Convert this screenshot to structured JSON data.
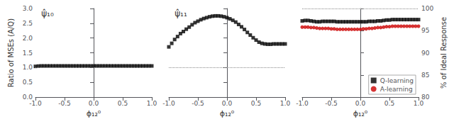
{
  "chart_data": [
    {
      "type": "scatter",
      "title": "ψ̂₁₀",
      "xlabel": "ϕ₁₂⁰",
      "ylabel": "Ratio of MSEs (A/Q)",
      "x": [
        -1.0,
        -0.95,
        -0.9,
        -0.85,
        -0.8,
        -0.75,
        -0.7,
        -0.65,
        -0.6,
        -0.55,
        -0.5,
        -0.45,
        -0.4,
        -0.35,
        -0.3,
        -0.25,
        -0.2,
        -0.15,
        -0.1,
        -0.05,
        0.0,
        0.05,
        0.1,
        0.15,
        0.2,
        0.25,
        0.3,
        0.35,
        0.4,
        0.45,
        0.5,
        0.55,
        0.6,
        0.65,
        0.7,
        0.75,
        0.8,
        0.85,
        0.9,
        0.95,
        1.0
      ],
      "values": [
        1.04,
        1.05,
        1.055,
        1.055,
        1.055,
        1.055,
        1.055,
        1.055,
        1.055,
        1.055,
        1.055,
        1.055,
        1.055,
        1.055,
        1.055,
        1.055,
        1.055,
        1.055,
        1.055,
        1.055,
        1.055,
        1.055,
        1.055,
        1.055,
        1.055,
        1.055,
        1.055,
        1.055,
        1.055,
        1.055,
        1.055,
        1.055,
        1.055,
        1.055,
        1.055,
        1.055,
        1.055,
        1.055,
        1.055,
        1.055,
        1.055
      ],
      "color": "#000000",
      "marker": "square",
      "xlim": [
        -1.0,
        1.0
      ],
      "xticks": [
        {
          "value": -1.0,
          "label": "-1.0"
        },
        -0.5,
        {
          "value": 0.0,
          "label": "0.0"
        },
        0.5,
        {
          "value": 1.0,
          "label": "1.0"
        }
      ],
      "ylim": [
        0.0,
        3.0
      ],
      "yticks": [
        {
          "value": 0.0,
          "label": "0.0"
        },
        0.5,
        {
          "value": 1.0,
          "label": "1.0"
        },
        1.5,
        {
          "value": 2.0,
          "label": "2.0"
        },
        2.5,
        {
          "value": 3.0,
          "label": "3.0"
        }
      ],
      "grid": false,
      "hline": {
        "value": 1.0,
        "color": "#888888",
        "line_style": "dotted"
      }
    },
    {
      "type": "scatter",
      "title": "ψ̂₁₁",
      "xlabel": "ϕ₁₂⁰",
      "x": [
        -1.0,
        -0.95,
        -0.9,
        -0.85,
        -0.8,
        -0.75,
        -0.7,
        -0.65,
        -0.6,
        -0.55,
        -0.5,
        -0.45,
        -0.4,
        -0.35,
        -0.3,
        -0.25,
        -0.2,
        -0.15,
        -0.1,
        -0.05,
        0.0,
        0.05,
        0.1,
        0.15,
        0.2,
        0.25,
        0.3,
        0.35,
        0.4,
        0.45,
        0.5,
        0.55,
        0.6,
        0.65,
        0.7,
        0.75,
        0.8,
        0.85,
        0.9,
        0.95,
        1.0
      ],
      "values": [
        1.7,
        1.82,
        1.95,
        2.05,
        2.15,
        2.22,
        2.3,
        2.37,
        2.45,
        2.52,
        2.57,
        2.62,
        2.66,
        2.69,
        2.72,
        2.74,
        2.75,
        2.75,
        2.74,
        2.72,
        2.69,
        2.65,
        2.6,
        2.54,
        2.46,
        2.38,
        2.29,
        2.19,
        2.1,
        2.01,
        1.93,
        1.86,
        1.82,
        1.8,
        1.79,
        1.79,
        1.8,
        1.8,
        1.8,
        1.8,
        1.8
      ],
      "color": "#000000",
      "marker": "square",
      "xlim": [
        -1.0,
        1.0
      ],
      "xticks": [
        {
          "value": -1.0,
          "label": "-1.0"
        },
        -0.5,
        {
          "value": 0.0,
          "label": "0.0"
        },
        0.5,
        {
          "value": 1.0,
          "label": "1.0"
        }
      ],
      "ylim": [
        0.0,
        3.0
      ],
      "yticks": [
        0.0,
        0.5,
        1.0,
        1.5,
        2.0,
        2.5,
        3.0
      ],
      "tick_labels": "x",
      "grid": false,
      "hline": {
        "value": 1.0,
        "color": "#888888",
        "line_style": "dotted"
      }
    },
    {
      "type": "scatter",
      "xlabel": "ϕ₁₂⁰",
      "ylabel": "% of Ideal Response",
      "x": [
        -1.0,
        -0.95,
        -0.9,
        -0.85,
        -0.8,
        -0.75,
        -0.7,
        -0.65,
        -0.6,
        -0.55,
        -0.5,
        -0.45,
        -0.4,
        -0.35,
        -0.3,
        -0.25,
        -0.2,
        -0.15,
        -0.1,
        -0.05,
        0.0,
        0.05,
        0.1,
        0.15,
        0.2,
        0.25,
        0.3,
        0.35,
        0.4,
        0.45,
        0.5,
        0.55,
        0.6,
        0.65,
        0.7,
        0.75,
        0.8,
        0.85,
        0.9,
        0.95,
        1.0
      ],
      "series": [
        {
          "name": "Q-learning",
          "color": "#000000",
          "marker": "square",
          "values": [
            97.2,
            97.3,
            97.3,
            97.2,
            97.1,
            97.0,
            97.0,
            97.1,
            97.1,
            97.1,
            97.1,
            97.1,
            97.0,
            97.0,
            97.0,
            97.0,
            97.0,
            97.0,
            97.0,
            97.0,
            97.0,
            97.0,
            97.0,
            97.1,
            97.1,
            97.1,
            97.2,
            97.2,
            97.3,
            97.4,
            97.4,
            97.5,
            97.5,
            97.5,
            97.5,
            97.5,
            97.5,
            97.5,
            97.5,
            97.5,
            97.5
          ]
        },
        {
          "name": "A-learning",
          "color": "#cc0000",
          "marker": "circle",
          "values": [
            95.8,
            95.8,
            95.8,
            95.7,
            95.7,
            95.6,
            95.5,
            95.5,
            95.5,
            95.5,
            95.4,
            95.4,
            95.3,
            95.3,
            95.3,
            95.3,
            95.3,
            95.3,
            95.3,
            95.3,
            95.3,
            95.4,
            95.4,
            95.5,
            95.5,
            95.6,
            95.7,
            95.7,
            95.8,
            95.9,
            95.9,
            96.0,
            96.0,
            96.0,
            96.0,
            96.0,
            96.0,
            96.0,
            96.0,
            96.0,
            96.0
          ]
        }
      ],
      "xlim": [
        -1.0,
        1.0
      ],
      "xticks": [
        {
          "value": -1.0,
          "label": "-1.0"
        },
        -0.5,
        {
          "value": 0.0,
          "label": "0.0"
        },
        0.5,
        {
          "value": 1.0,
          "label": "1.0"
        }
      ],
      "ylim": [
        80,
        100
      ],
      "yticks": [
        80,
        85,
        90,
        95,
        100
      ],
      "grid": false,
      "legend": "lower right",
      "hline": {
        "value": 100.0,
        "color": "#888888",
        "line_style": "dotted"
      }
    }
  ]
}
